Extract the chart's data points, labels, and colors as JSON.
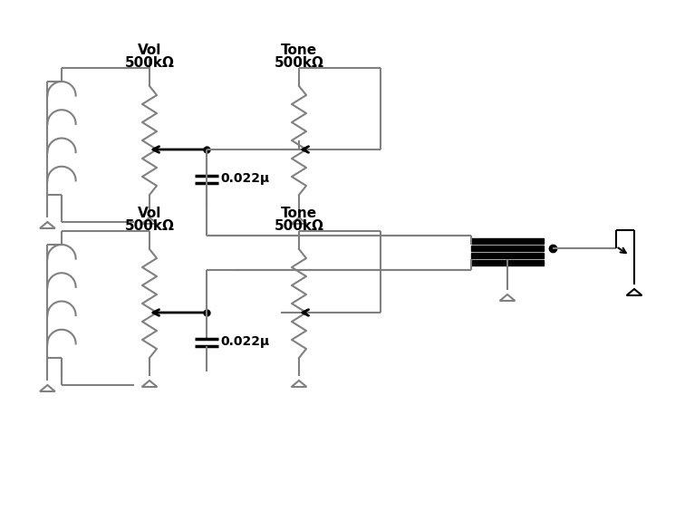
{
  "bg_color": "#ffffff",
  "line_color": "#808080",
  "black_color": "#000000",
  "lw": 1.5,
  "vol_label": "Vol",
  "tone_label": "Tone",
  "pot_label": "500kΩ",
  "cap_label": "0.022μ"
}
